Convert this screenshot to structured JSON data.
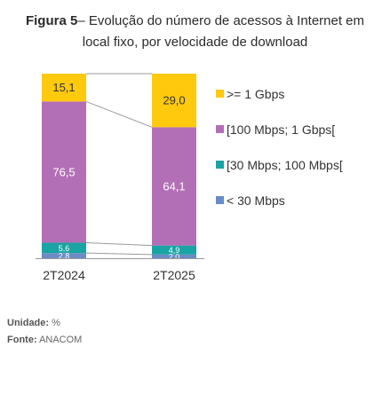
{
  "title_bold": "Figura 5",
  "title_line1": "– Evolução do número de acessos à Internet em",
  "title_line2": "local fixo, por velocidade de download",
  "footer": {
    "unit_label": "Unidade:",
    "unit_value": "%",
    "source_label": "Fonte:",
    "source_value": "ANACOM"
  },
  "chart_data": {
    "type": "bar",
    "stacked": true,
    "categories": [
      "2T2024",
      "2T2025"
    ],
    "series": [
      {
        "name": "< 30 Mbps",
        "values": [
          2.8,
          2.0
        ],
        "labels": [
          "2,8",
          "2,0"
        ],
        "color": "#6b8cc4"
      },
      {
        "name": "[30 Mbps; 100 Mbps[",
        "values": [
          5.6,
          4.9
        ],
        "labels": [
          "5,6",
          "4,9"
        ],
        "color": "#1aa3a3"
      },
      {
        "name": "[100 Mbps; 1 Gbps[",
        "values": [
          76.5,
          64.1
        ],
        "labels": [
          "76,5",
          "64,1"
        ],
        "color": "#b36fb6"
      },
      {
        "name": ">= 1 Gbps",
        "values": [
          15.1,
          29.0
        ],
        "labels": [
          "15,1",
          "29,0"
        ],
        "color": "#ffc90e"
      }
    ],
    "ylim": [
      0,
      100
    ],
    "legend_position": "right",
    "connector_lines": true,
    "grid": false
  }
}
